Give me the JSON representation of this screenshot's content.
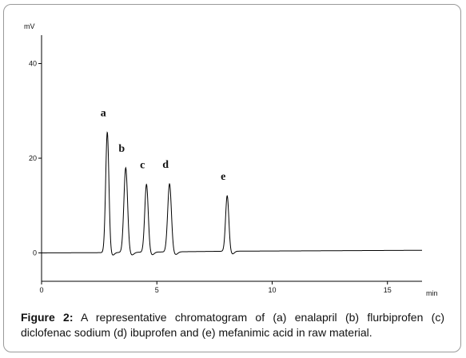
{
  "chart_data": {
    "type": "line",
    "ylabel": "mV",
    "xlabel": "min",
    "xlim": [
      0,
      16.5
    ],
    "ylim": [
      -6,
      46
    ],
    "x_ticks": [
      0,
      5,
      10,
      15
    ],
    "y_ticks": [
      0,
      20,
      40
    ],
    "baseline": [
      {
        "x": 0,
        "y": 0
      },
      {
        "x": 2.6,
        "y": 0.05
      },
      {
        "x": 8.0,
        "y": 0.35
      },
      {
        "x": 16.5,
        "y": 0.55
      }
    ],
    "peaks": [
      {
        "label": "a",
        "x": 2.85,
        "y": 25.5,
        "width": 0.07
      },
      {
        "label": "b",
        "x": 3.65,
        "y": 18.0,
        "width": 0.08
      },
      {
        "label": "c",
        "x": 4.55,
        "y": 14.5,
        "width": 0.075
      },
      {
        "label": "d",
        "x": 5.55,
        "y": 14.6,
        "width": 0.08
      },
      {
        "label": "e",
        "x": 8.05,
        "y": 12.1,
        "width": 0.07
      }
    ]
  },
  "caption": {
    "figure_label": "Figure 2:",
    "text": " A representative chromatogram of (a) enalapril (b) flurbiprofen (c) diclofenac sodium (d) ibuprofen and (e) mefanimic acid in raw material."
  }
}
